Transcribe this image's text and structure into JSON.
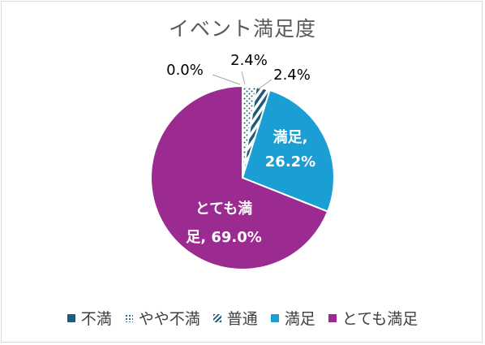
{
  "chart_data": {
    "type": "pie",
    "title": "イベント満足度",
    "categories": [
      "不満",
      "やや不満",
      "普通",
      "満足",
      "とても満足"
    ],
    "values": [
      0.0,
      2.4,
      2.4,
      26.2,
      69.0
    ],
    "unit": "%",
    "data_labels": [
      {
        "lines": [
          "0.0%"
        ]
      },
      {
        "lines": [
          "2.4%"
        ]
      },
      {
        "lines": [
          "2.4%"
        ]
      },
      {
        "lines": [
          "満足,",
          "26.2%"
        ]
      },
      {
        "lines": [
          "とても満",
          "足, 69.0%"
        ]
      }
    ],
    "colors": {
      "不満": "#1f5a7a",
      "やや不満": "#1f5a7a",
      "普通": "#1f5a7a",
      "満足": "#1a9ed4",
      "とても満足": "#9b2b90"
    },
    "patterns": {
      "不満": "solid",
      "やや不満": "dots",
      "普通": "diagonal-stripes",
      "満足": "solid",
      "とても満足": "solid"
    },
    "legend_position": "bottom"
  }
}
